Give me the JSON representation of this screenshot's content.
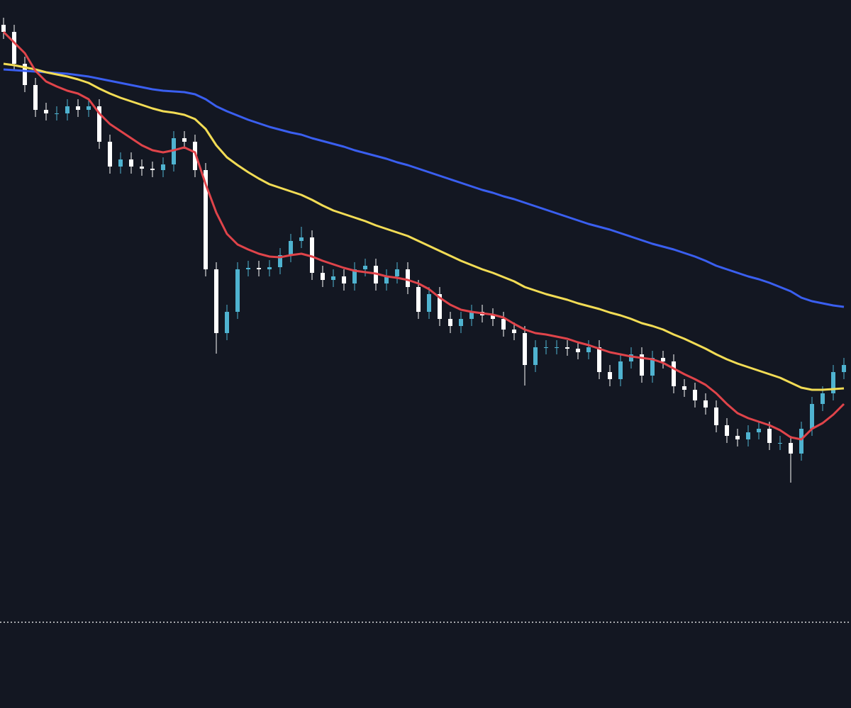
{
  "chart_data": {
    "type": "candlestick",
    "ylim": [
      0,
      999
    ],
    "up_color": "#4fb3d0",
    "down_color": "#ffffff",
    "open": [
      964,
      954,
      909,
      879,
      844,
      839,
      839,
      849,
      844,
      849,
      799,
      764,
      774,
      764,
      761,
      759,
      767,
      804,
      799,
      759,
      619,
      529,
      559,
      619,
      621,
      619,
      622,
      639,
      659,
      664,
      614,
      604,
      609,
      599,
      619,
      624,
      599,
      609,
      619,
      594,
      559,
      584,
      549,
      539,
      549,
      559,
      554,
      549,
      534,
      529,
      484,
      509,
      509,
      509,
      507,
      502,
      509,
      474,
      464,
      489,
      499,
      469,
      494,
      489,
      454,
      449,
      434,
      424,
      399,
      384,
      379,
      389,
      394,
      374,
      374,
      359,
      394,
      429,
      444,
      474
    ],
    "high": [
      974,
      964,
      919,
      889,
      854,
      849,
      859,
      859,
      859,
      859,
      809,
      784,
      784,
      774,
      771,
      777,
      814,
      814,
      809,
      769,
      629,
      569,
      629,
      631,
      631,
      632,
      649,
      669,
      679,
      674,
      624,
      619,
      619,
      629,
      634,
      634,
      619,
      629,
      629,
      604,
      594,
      594,
      559,
      559,
      569,
      569,
      564,
      559,
      544,
      539,
      519,
      519,
      519,
      519,
      517,
      519,
      519,
      484,
      499,
      509,
      509,
      504,
      504,
      499,
      464,
      459,
      444,
      434,
      409,
      394,
      399,
      404,
      404,
      384,
      384,
      404,
      439,
      454,
      484,
      494
    ],
    "low": [
      944,
      899,
      869,
      834,
      829,
      829,
      829,
      834,
      834,
      789,
      754,
      754,
      754,
      751,
      749,
      749,
      757,
      789,
      749,
      609,
      500,
      519,
      549,
      609,
      609,
      609,
      612,
      629,
      649,
      604,
      594,
      594,
      589,
      589,
      609,
      589,
      589,
      599,
      584,
      549,
      549,
      539,
      529,
      529,
      539,
      544,
      539,
      524,
      519,
      455,
      474,
      499,
      499,
      497,
      492,
      492,
      464,
      454,
      454,
      479,
      459,
      459,
      479,
      444,
      439,
      424,
      414,
      389,
      374,
      369,
      369,
      379,
      364,
      364,
      318,
      349,
      384,
      419,
      434,
      464
    ],
    "close": [
      954,
      909,
      879,
      844,
      839,
      839,
      849,
      844,
      849,
      799,
      764,
      774,
      764,
      761,
      759,
      767,
      804,
      799,
      759,
      619,
      529,
      559,
      619,
      621,
      619,
      622,
      639,
      659,
      664,
      614,
      604,
      609,
      599,
      619,
      624,
      599,
      609,
      619,
      594,
      559,
      584,
      549,
      539,
      549,
      559,
      554,
      549,
      534,
      529,
      484,
      509,
      509,
      509,
      507,
      502,
      509,
      474,
      464,
      489,
      499,
      469,
      494,
      489,
      454,
      449,
      434,
      424,
      399,
      384,
      379,
      389,
      394,
      374,
      374,
      359,
      394,
      429,
      444,
      474,
      484
    ],
    "series": [
      {
        "color": "#3a5ff0",
        "values": [
          901,
          900,
          899,
          898,
          897,
          896,
          895,
          893,
          891,
          888,
          885,
          882,
          879,
          876,
          873,
          871,
          870,
          869,
          866,
          859,
          849,
          842,
          836,
          830,
          825,
          820,
          816,
          812,
          809,
          804,
          800,
          796,
          792,
          787,
          783,
          779,
          775,
          770,
          766,
          761,
          756,
          751,
          746,
          741,
          736,
          731,
          727,
          722,
          718,
          713,
          708,
          703,
          698,
          693,
          688,
          683,
          679,
          675,
          670,
          665,
          660,
          655,
          651,
          647,
          642,
          637,
          631,
          624,
          619,
          614,
          609,
          605,
          600,
          594,
          588,
          579,
          574,
          571,
          568,
          566
        ]
      },
      {
        "color": "#f2dc55",
        "values": [
          909,
          907,
          904,
          901,
          897,
          894,
          891,
          887,
          882,
          874,
          867,
          861,
          856,
          851,
          846,
          842,
          840,
          837,
          831,
          817,
          794,
          777,
          766,
          756,
          747,
          739,
          734,
          729,
          724,
          717,
          709,
          702,
          697,
          692,
          687,
          681,
          676,
          671,
          666,
          659,
          652,
          645,
          638,
          631,
          625,
          619,
          614,
          608,
          602,
          594,
          589,
          584,
          580,
          576,
          571,
          567,
          563,
          558,
          554,
          549,
          543,
          539,
          534,
          527,
          521,
          514,
          507,
          499,
          492,
          486,
          481,
          476,
          471,
          466,
          459,
          452,
          449,
          449,
          450,
          451
        ]
      },
      {
        "color": "#e0444a",
        "values": [
          954,
          939,
          924,
          899,
          884,
          877,
          871,
          867,
          859,
          839,
          824,
          814,
          804,
          794,
          787,
          784,
          787,
          791,
          784,
          739,
          699,
          669,
          654,
          647,
          641,
          637,
          636,
          639,
          641,
          637,
          631,
          626,
          621,
          617,
          615,
          613,
          609,
          607,
          604,
          599,
          591,
          579,
          569,
          562,
          559,
          557,
          555,
          551,
          542,
          534,
          529,
          527,
          524,
          521,
          516,
          512,
          507,
          502,
          499,
          496,
          494,
          492,
          487,
          479,
          471,
          464,
          456,
          444,
          429,
          416,
          409,
          404,
          399,
          392,
          382,
          379,
          394,
          402,
          414,
          429
        ]
      }
    ],
    "hline": 121
  }
}
